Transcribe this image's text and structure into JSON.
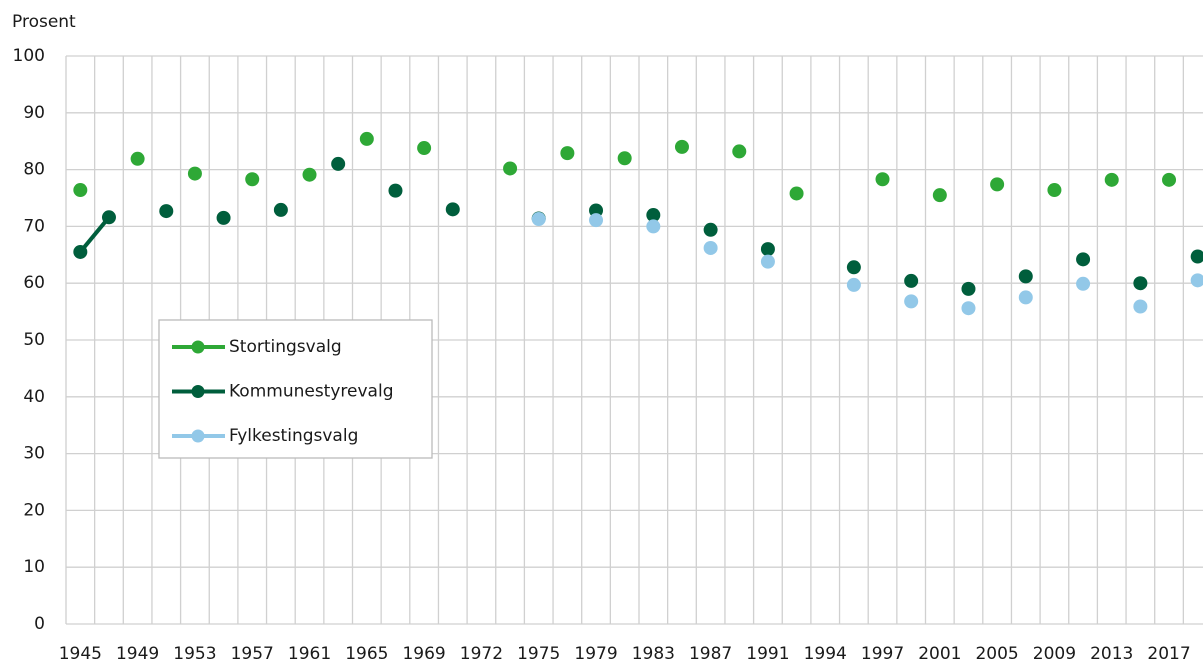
{
  "chart_data": {
    "type": "scatter",
    "y_label": "Prosent",
    "categories": [
      "1945",
      null,
      "1949",
      null,
      "1953",
      null,
      "1957",
      null,
      "1961",
      null,
      "1965",
      null,
      "1969",
      null,
      "1972",
      null,
      "1975",
      null,
      "1979",
      null,
      "1983",
      null,
      "1987",
      null,
      "1991",
      null,
      "1994",
      null,
      "1997",
      null,
      "2001",
      null,
      "2005",
      null,
      "2009",
      null,
      "2013",
      null,
      "2017",
      null
    ],
    "series": [
      {
        "name": "Stortingsvalg",
        "color": "#2ea836",
        "values": [
          76.4,
          null,
          81.9,
          null,
          79.3,
          null,
          78.3,
          null,
          79.1,
          null,
          85.4,
          null,
          83.8,
          null,
          null,
          80.2,
          null,
          82.9,
          null,
          82.0,
          null,
          84.0,
          null,
          83.2,
          null,
          75.8,
          null,
          null,
          78.3,
          null,
          75.5,
          null,
          77.4,
          null,
          76.4,
          null,
          78.2,
          null,
          78.2,
          null
        ]
      },
      {
        "name": "Kommunestyrevalg",
        "color": "#005e3c",
        "values": [
          65.5,
          71.6,
          null,
          72.7,
          null,
          71.5,
          null,
          72.9,
          null,
          81.0,
          null,
          76.3,
          null,
          73.0,
          null,
          null,
          71.4,
          null,
          72.8,
          null,
          72.0,
          null,
          69.4,
          null,
          66.0,
          null,
          null,
          62.8,
          null,
          60.4,
          null,
          59.0,
          null,
          61.2,
          null,
          64.2,
          null,
          60.0,
          null,
          64.7
        ]
      },
      {
        "name": "Fylkestingsvalg",
        "color": "#92c8e8",
        "values": [
          null,
          null,
          null,
          null,
          null,
          null,
          null,
          null,
          null,
          null,
          null,
          null,
          null,
          null,
          null,
          null,
          71.3,
          null,
          71.1,
          null,
          70.0,
          null,
          66.2,
          null,
          63.8,
          null,
          null,
          59.7,
          null,
          56.8,
          null,
          55.6,
          null,
          57.5,
          null,
          59.9,
          null,
          55.9,
          null,
          60.5
        ]
      }
    ],
    "ylim": [
      0,
      100
    ],
    "yticks": [
      0,
      10,
      20,
      30,
      40,
      50,
      60,
      70,
      80,
      90,
      100
    ],
    "grid": true
  }
}
